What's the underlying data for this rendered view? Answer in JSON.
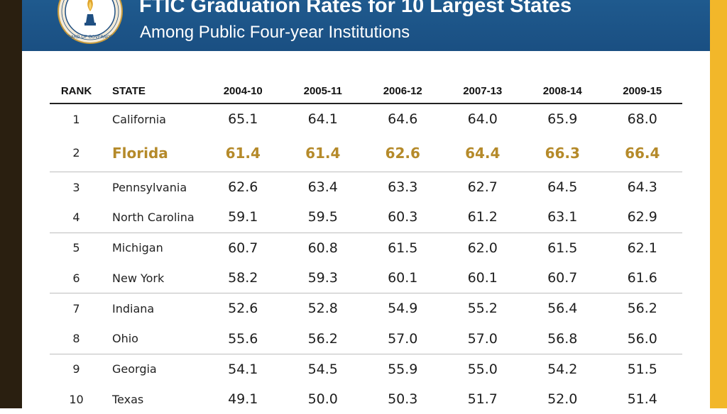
{
  "header": {
    "title": "FTIC Graduation Rates for 10 Largest States",
    "subtitle": "Among Public Four-year Institutions",
    "seal_text": "STATE UNIVERSITY SYSTEM OF FLORIDA · BOARD OF GOVERNORS"
  },
  "colors": {
    "header_blue": "#1f5a8e",
    "highlight_gold": "#b58a2a",
    "right_stripe": "#f2b72a",
    "left_stripe": "#2a1f10"
  },
  "table": {
    "columns": [
      "RANK",
      "STATE",
      "2004-10",
      "2005-11",
      "2006-12",
      "2007-13",
      "2008-14",
      "2009-15"
    ],
    "rows": [
      {
        "rank": "1",
        "state": "California",
        "values": [
          "65.1",
          "64.1",
          "64.6",
          "64.0",
          "65.9",
          "68.0"
        ]
      },
      {
        "rank": "2",
        "state": "Florida",
        "values": [
          "61.4",
          "61.4",
          "62.6",
          "64.4",
          "66.3",
          "66.4"
        ]
      },
      {
        "rank": "3",
        "state": "Pennsylvania",
        "values": [
          "62.6",
          "63.4",
          "63.3",
          "62.7",
          "64.5",
          "64.3"
        ]
      },
      {
        "rank": "4",
        "state": "North Carolina",
        "values": [
          "59.1",
          "59.5",
          "60.3",
          "61.2",
          "63.1",
          "62.9"
        ]
      },
      {
        "rank": "5",
        "state": "Michigan",
        "values": [
          "60.7",
          "60.8",
          "61.5",
          "62.0",
          "61.5",
          "62.1"
        ]
      },
      {
        "rank": "6",
        "state": "New York",
        "values": [
          "58.2",
          "59.3",
          "60.1",
          "60.1",
          "60.7",
          "61.6"
        ]
      },
      {
        "rank": "7",
        "state": "Indiana",
        "values": [
          "52.6",
          "52.8",
          "54.9",
          "55.2",
          "56.4",
          "56.2"
        ]
      },
      {
        "rank": "8",
        "state": "Ohio",
        "values": [
          "55.6",
          "56.2",
          "57.0",
          "57.0",
          "56.8",
          "56.0"
        ]
      },
      {
        "rank": "9",
        "state": "Georgia",
        "values": [
          "54.1",
          "54.5",
          "55.9",
          "55.0",
          "54.2",
          "51.5"
        ]
      },
      {
        "rank": "10",
        "state": "Texas",
        "values": [
          "49.1",
          "50.0",
          "50.3",
          "51.7",
          "52.0",
          "51.4"
        ]
      }
    ]
  }
}
